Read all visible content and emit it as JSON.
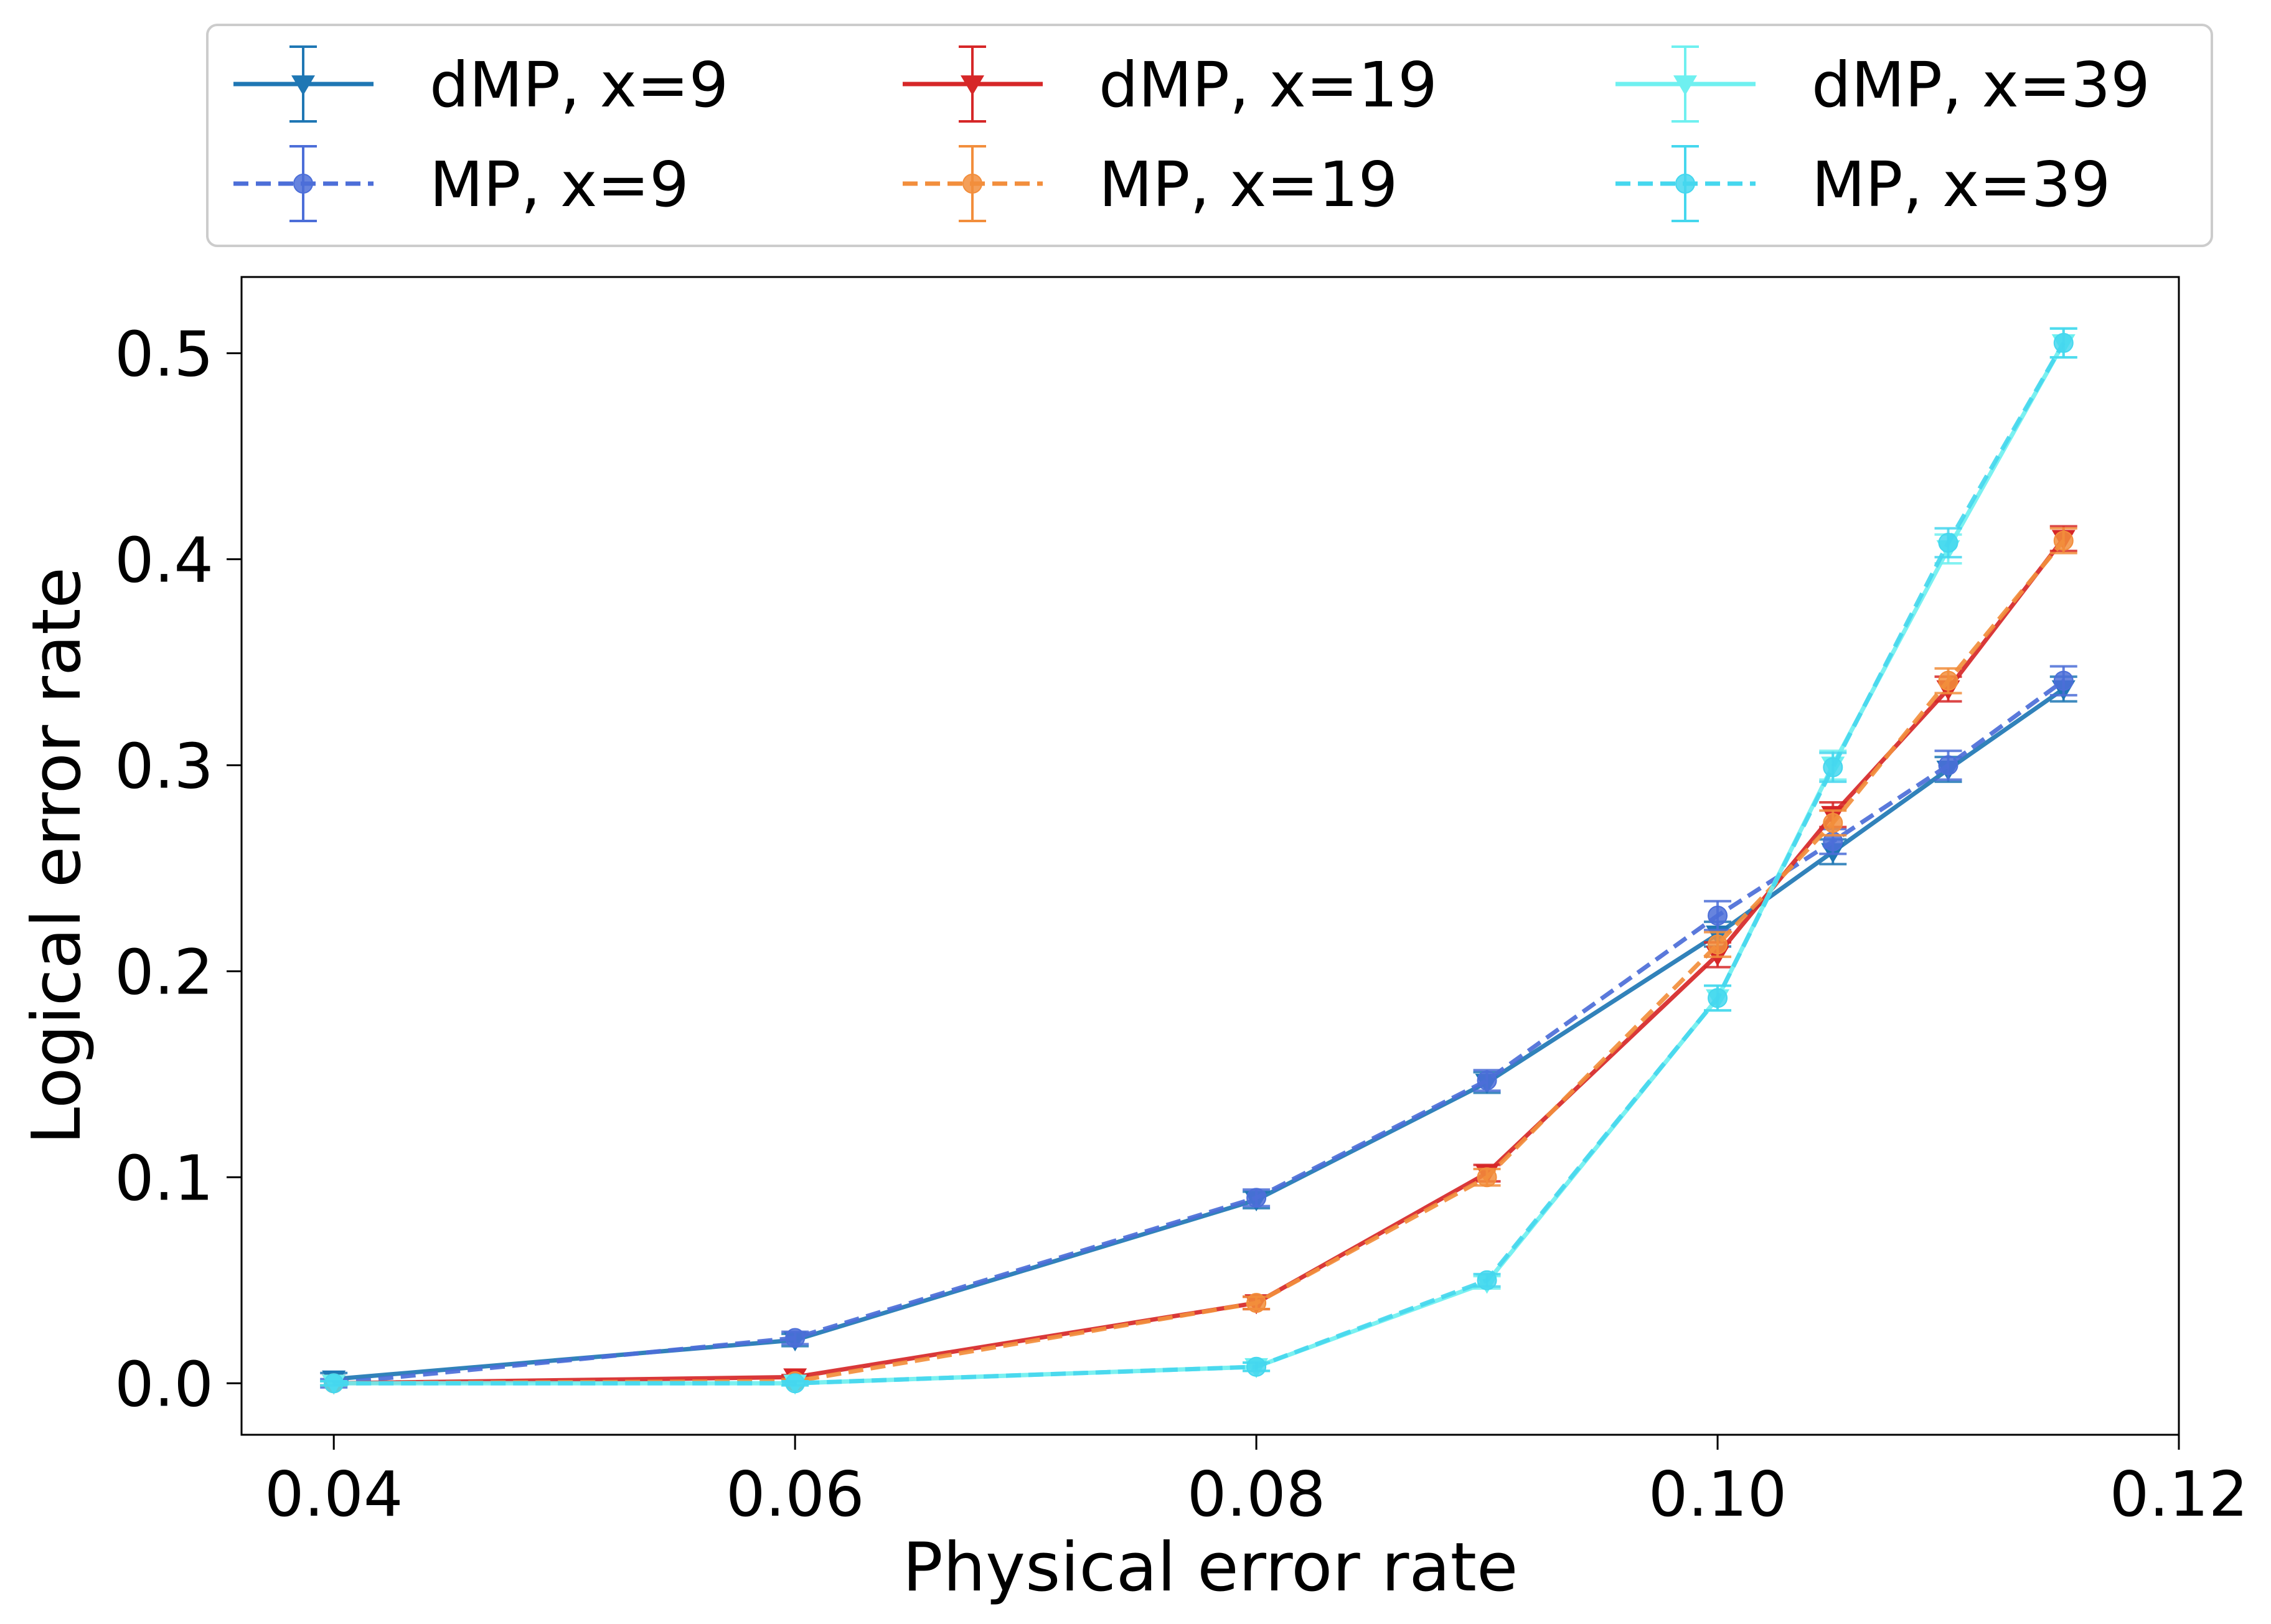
{
  "chart_data": {
    "type": "line",
    "xlabel": "Physical error rate",
    "ylabel": "Logical error rate",
    "xlim": [
      0.036,
      0.12
    ],
    "ylim": [
      -0.025,
      0.537
    ],
    "xticks": [
      0.04,
      0.06,
      0.08,
      0.1,
      0.12
    ],
    "xtick_labels": [
      "0.04",
      "0.06",
      "0.08",
      "0.10",
      "0.12"
    ],
    "yticks": [
      0.0,
      0.1,
      0.2,
      0.3,
      0.4,
      0.5
    ],
    "ytick_labels": [
      "0.0",
      "0.1",
      "0.2",
      "0.3",
      "0.4",
      "0.5"
    ],
    "grid": false,
    "legend_position": "top, outside plot, 3 columns",
    "x": [
      0.04,
      0.06,
      0.08,
      0.09,
      0.1,
      0.105,
      0.11,
      0.115
    ],
    "series": [
      {
        "name": "dMP, x=9",
        "color": "#1f77b4",
        "linestyle": "solid",
        "marker": "triangle-down",
        "values": [
          0.002,
          0.021,
          0.089,
          0.146,
          0.218,
          0.258,
          0.298,
          0.337
        ],
        "errors": [
          0.003,
          0.003,
          0.004,
          0.005,
          0.006,
          0.006,
          0.006,
          0.006
        ]
      },
      {
        "name": "MP, x=9",
        "color": "#4c6ed8",
        "linestyle": "dashed",
        "marker": "circle",
        "values": [
          0.0,
          0.022,
          0.09,
          0.147,
          0.227,
          0.263,
          0.3,
          0.341
        ],
        "errors": [
          0.002,
          0.003,
          0.004,
          0.005,
          0.007,
          0.006,
          0.007,
          0.007
        ]
      },
      {
        "name": "dMP, x=19",
        "color": "#d62728",
        "linestyle": "solid",
        "marker": "triangle-down",
        "values": [
          0.0,
          0.003,
          0.039,
          0.102,
          0.208,
          0.276,
          0.337,
          0.41
        ],
        "errors": [
          0.001,
          0.001,
          0.003,
          0.004,
          0.006,
          0.006,
          0.006,
          0.006
        ]
      },
      {
        "name": "MP, x=19",
        "color": "#f28e3c",
        "linestyle": "dashed",
        "marker": "circle",
        "values": [
          0.0,
          0.001,
          0.039,
          0.1,
          0.213,
          0.272,
          0.341,
          0.409
        ],
        "errors": [
          0.001,
          0.001,
          0.003,
          0.004,
          0.006,
          0.006,
          0.006,
          0.006
        ]
      },
      {
        "name": "dMP, x=39",
        "color": "#6ff0f0",
        "linestyle": "solid",
        "marker": "triangle-down",
        "values": [
          0.0,
          0.0,
          0.008,
          0.049,
          0.187,
          0.3,
          0.405,
          0.505
        ],
        "errors": [
          0.001,
          0.001,
          0.002,
          0.003,
          0.006,
          0.007,
          0.007,
          0.007
        ]
      },
      {
        "name": "MP, x=39",
        "color": "#45d7ee",
        "linestyle": "dashed",
        "marker": "circle",
        "values": [
          0.0,
          0.0,
          0.008,
          0.05,
          0.187,
          0.299,
          0.408,
          0.505
        ],
        "errors": [
          0.001,
          0.001,
          0.002,
          0.003,
          0.006,
          0.007,
          0.007,
          0.007
        ]
      }
    ]
  }
}
